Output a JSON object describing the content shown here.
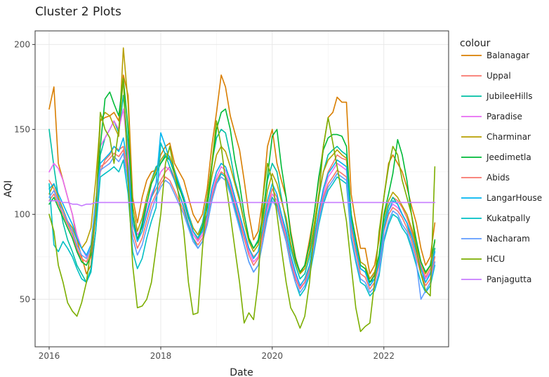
{
  "chart_data": {
    "type": "line",
    "title": "Cluster 2 Plots",
    "xlabel": "Date",
    "ylabel": "AQI",
    "xlim": [
      "2015-10-01",
      "2023-03-01"
    ],
    "ylim": [
      22,
      208
    ],
    "x_ticks": [
      {
        "value": "2016-01-01",
        "label": "2016"
      },
      {
        "value": "2018-01-01",
        "label": "2018"
      },
      {
        "value": "2020-01-01",
        "label": "2020"
      },
      {
        "value": "2022-01-01",
        "label": "2022"
      }
    ],
    "y_ticks": [
      50,
      100,
      150,
      200
    ],
    "grid": true,
    "legend": {
      "title": "colour",
      "position": "right"
    },
    "x": [
      "2016-01",
      "2016-02",
      "2016-03",
      "2016-04",
      "2016-05",
      "2016-06",
      "2016-07",
      "2016-08",
      "2016-09",
      "2016-10",
      "2016-11",
      "2016-12",
      "2017-01",
      "2017-02",
      "2017-03",
      "2017-04",
      "2017-05",
      "2017-06",
      "2017-07",
      "2017-08",
      "2017-09",
      "2017-10",
      "2017-11",
      "2017-12",
      "2018-01",
      "2018-02",
      "2018-03",
      "2018-04",
      "2018-05",
      "2018-06",
      "2018-07",
      "2018-08",
      "2018-09",
      "2018-10",
      "2018-11",
      "2018-12",
      "2019-01",
      "2019-02",
      "2019-03",
      "2019-04",
      "2019-05",
      "2019-06",
      "2019-07",
      "2019-08",
      "2019-09",
      "2019-10",
      "2019-11",
      "2019-12",
      "2020-01",
      "2020-02",
      "2020-03",
      "2020-04",
      "2020-05",
      "2020-06",
      "2020-07",
      "2020-08",
      "2020-09",
      "2020-10",
      "2020-11",
      "2020-12",
      "2021-01",
      "2021-02",
      "2021-03",
      "2021-04",
      "2021-05",
      "2021-06",
      "2021-07",
      "2021-08",
      "2021-09",
      "2021-10",
      "2021-11",
      "2021-12",
      "2022-01",
      "2022-02",
      "2022-03",
      "2022-04",
      "2022-05",
      "2022-06",
      "2022-07",
      "2022-08",
      "2022-09",
      "2022-10",
      "2022-11",
      "2022-12"
    ],
    "series": [
      {
        "name": "Balanagar",
        "color": "#D97E00",
        "values": [
          162,
          175,
          130,
          120,
          110,
          100,
          85,
          75,
          65,
          70,
          100,
          155,
          157,
          158,
          160,
          155,
          182,
          170,
          110,
          95,
          110,
          120,
          125,
          126,
          135,
          140,
          142,
          130,
          125,
          120,
          110,
          100,
          95,
          100,
          115,
          140,
          160,
          182,
          175,
          158,
          148,
          138,
          120,
          100,
          85,
          90,
          110,
          140,
          150,
          130,
          120,
          110,
          90,
          75,
          65,
          70,
          85,
          100,
          120,
          140,
          157,
          160,
          169,
          166,
          166,
          112,
          95,
          80,
          80,
          65,
          70,
          85,
          110,
          130,
          135,
          130,
          125,
          116,
          105,
          95,
          80,
          70,
          75,
          95
        ]
      },
      {
        "name": "Uppal",
        "color": "#F8766D",
        "values": [
          120,
          115,
          108,
          102,
          95,
          90,
          80,
          72,
          70,
          75,
          100,
          125,
          132,
          135,
          140,
          138,
          140,
          125,
          95,
          85,
          90,
          100,
          110,
          115,
          120,
          125,
          128,
          122,
          115,
          110,
          100,
          90,
          85,
          90,
          100,
          115,
          125,
          130,
          128,
          120,
          110,
          100,
          90,
          80,
          75,
          78,
          90,
          105,
          115,
          110,
          100,
          90,
          75,
          65,
          58,
          62,
          70,
          85,
          100,
          115,
          125,
          130,
          135,
          133,
          132,
          100,
          85,
          70,
          68,
          60,
          65,
          75,
          95,
          105,
          110,
          108,
          104,
          98,
          90,
          80,
          70,
          63,
          68,
          80
        ]
      },
      {
        "name": "JubileeHills",
        "color": "#00BFA4",
        "values": [
          150,
          128,
          110,
          95,
          85,
          78,
          70,
          65,
          60,
          68,
          90,
          135,
          145,
          150,
          155,
          148,
          170,
          140,
          100,
          85,
          95,
          110,
          120,
          128,
          130,
          135,
          132,
          125,
          118,
          110,
          100,
          92,
          88,
          95,
          110,
          130,
          145,
          150,
          148,
          135,
          120,
          110,
          95,
          85,
          80,
          85,
          100,
          120,
          130,
          125,
          110,
          95,
          80,
          70,
          62,
          65,
          75,
          90,
          110,
          125,
          135,
          138,
          140,
          137,
          135,
          95,
          80,
          68,
          66,
          60,
          62,
          72,
          95,
          105,
          110,
          106,
          100,
          95,
          85,
          75,
          65,
          60,
          65,
          80
        ]
      },
      {
        "name": "Paradise",
        "color": "#E76BF3",
        "values": [
          125,
          130,
          127,
          120,
          110,
          100,
          88,
          80,
          75,
          80,
          105,
          140,
          145,
          150,
          155,
          150,
          162,
          135,
          98,
          88,
          92,
          102,
          112,
          118,
          125,
          128,
          126,
          120,
          112,
          105,
          95,
          88,
          84,
          88,
          98,
          112,
          122,
          128,
          126,
          118,
          108,
          98,
          88,
          78,
          72,
          75,
          88,
          103,
          112,
          108,
          98,
          88,
          74,
          64,
          57,
          60,
          68,
          82,
          98,
          112,
          122,
          126,
          130,
          128,
          126,
          96,
          82,
          68,
          66,
          58,
          62,
          72,
          92,
          102,
          106,
          104,
          100,
          95,
          88,
          78,
          68,
          62,
          66,
          78
        ]
      },
      {
        "name": "Charminar",
        "color": "#B79F00",
        "values": [
          112,
          118,
          110,
          103,
          96,
          92,
          85,
          80,
          84,
          92,
          120,
          155,
          160,
          158,
          152,
          146,
          198,
          165,
          105,
          90,
          98,
          110,
          120,
          126,
          132,
          136,
          134,
          126,
          118,
          110,
          100,
          92,
          88,
          93,
          105,
          122,
          135,
          140,
          137,
          128,
          118,
          108,
          95,
          84,
          78,
          82,
          96,
          114,
          124,
          118,
          108,
          98,
          83,
          72,
          65,
          68,
          78,
          94,
          112,
          125,
          132,
          135,
          138,
          135,
          133,
          100,
          86,
          72,
          70,
          62,
          66,
          76,
          98,
          108,
          113,
          110,
          105,
          100,
          92,
          82,
          72,
          65,
          70,
          84
        ]
      },
      {
        "name": "Jeedimetla",
        "color": "#00BA38",
        "values": [
          106,
          110,
          104,
          98,
          92,
          86,
          78,
          72,
          70,
          76,
          102,
          140,
          168,
          172,
          165,
          158,
          180,
          150,
          100,
          85,
          93,
          106,
          118,
          124,
          130,
          134,
          132,
          124,
          116,
          108,
          98,
          90,
          86,
          92,
          104,
          128,
          150,
          160,
          162,
          150,
          132,
          118,
          100,
          86,
          80,
          84,
          100,
          122,
          146,
          150,
          128,
          110,
          88,
          74,
          66,
          70,
          82,
          100,
          122,
          138,
          145,
          147,
          147,
          146,
          140,
          100,
          84,
          70,
          68,
          60,
          64,
          76,
          100,
          112,
          124,
          144,
          135,
          120,
          100,
          85,
          72,
          66,
          70,
          85
        ]
      },
      {
        "name": "Abids",
        "color": "#F8766D",
        "values": [
          108,
          112,
          106,
          100,
          94,
          88,
          80,
          74,
          72,
          78,
          104,
          128,
          130,
          133,
          136,
          134,
          138,
          120,
          90,
          80,
          86,
          96,
          106,
          112,
          118,
          122,
          120,
          114,
          108,
          102,
          94,
          86,
          82,
          86,
          96,
          110,
          120,
          125,
          123,
          116,
          106,
          96,
          86,
          76,
          70,
          74,
          88,
          100,
          110,
          106,
          96,
          86,
          72,
          62,
          56,
          60,
          68,
          82,
          98,
          110,
          118,
          122,
          126,
          124,
          122,
          92,
          78,
          65,
          63,
          56,
          60,
          70,
          90,
          100,
          104,
          102,
          98,
          92,
          85,
          75,
          65,
          58,
          62,
          75
        ]
      },
      {
        "name": "LangarHouse",
        "color": "#00B4F0",
        "values": [
          115,
          118,
          112,
          106,
          100,
          94,
          86,
          80,
          76,
          82,
          108,
          130,
          133,
          136,
          140,
          137,
          145,
          128,
          95,
          84,
          90,
          100,
          110,
          118,
          148,
          140,
          132,
          126,
          118,
          110,
          100,
          90,
          86,
          90,
          100,
          115,
          125,
          130,
          128,
          120,
          110,
          100,
          90,
          80,
          74,
          78,
          92,
          108,
          118,
          112,
          100,
          90,
          76,
          66,
          58,
          62,
          70,
          86,
          102,
          115,
          124,
          128,
          132,
          130,
          128,
          96,
          82,
          68,
          66,
          58,
          62,
          72,
          92,
          102,
          108,
          106,
          100,
          95,
          88,
          78,
          68,
          60,
          65,
          78
        ]
      },
      {
        "name": "Kukatpally",
        "color": "#00BFC4",
        "values": [
          118,
          82,
          78,
          84,
          80,
          75,
          68,
          62,
          60,
          66,
          90,
          122,
          124,
          126,
          128,
          125,
          132,
          112,
          78,
          68,
          74,
          86,
          96,
          104,
          142,
          135,
          128,
          120,
          112,
          104,
          94,
          86,
          80,
          84,
          94,
          108,
          118,
          124,
          122,
          114,
          104,
          94,
          82,
          72,
          66,
          70,
          84,
          100,
          110,
          105,
          94,
          84,
          70,
          60,
          52,
          56,
          64,
          78,
          94,
          106,
          114,
          118,
          122,
          120,
          118,
          86,
          72,
          60,
          58,
          52,
          55,
          64,
          84,
          94,
          100,
          98,
          92,
          88,
          80,
          70,
          60,
          54,
          58,
          70
        ]
      },
      {
        "name": "Nacharam",
        "color": "#619CFF",
        "values": [
          110,
          114,
          108,
          102,
          96,
          90,
          82,
          76,
          74,
          80,
          106,
          126,
          128,
          130,
          134,
          131,
          136,
          118,
          86,
          76,
          82,
          92,
          102,
          110,
          116,
          120,
          118,
          112,
          106,
          100,
          92,
          84,
          80,
          84,
          94,
          108,
          118,
          122,
          120,
          112,
          102,
          92,
          82,
          72,
          66,
          70,
          84,
          98,
          108,
          104,
          94,
          84,
          70,
          60,
          54,
          58,
          66,
          80,
          96,
          108,
          116,
          120,
          124,
          122,
          120,
          88,
          74,
          62,
          60,
          54,
          57,
          66,
          86,
          96,
          102,
          100,
          94,
          90,
          82,
          72,
          50,
          55,
          60,
          72
        ]
      },
      {
        "name": "HCU",
        "color": "#7CAE00",
        "values": [
          100,
          90,
          70,
          60,
          48,
          43,
          40,
          48,
          60,
          80,
          100,
          160,
          150,
          145,
          130,
          150,
          180,
          120,
          70,
          45,
          46,
          50,
          60,
          80,
          100,
          130,
          140,
          125,
          110,
          90,
          60,
          41,
          42,
          80,
          110,
          130,
          155,
          140,
          120,
          100,
          80,
          60,
          36,
          42,
          38,
          60,
          110,
          130,
          120,
          100,
          80,
          60,
          45,
          40,
          33,
          40,
          60,
          90,
          110,
          140,
          157,
          142,
          128,
          112,
          96,
          70,
          45,
          31,
          34,
          36,
          60,
          90,
          110,
          128,
          140,
          135,
          120,
          110,
          100,
          80,
          65,
          55,
          52,
          128
        ]
      },
      {
        "name": "Panjagutta",
        "color": "#C77CFF",
        "values": [
          108,
          108,
          108,
          107,
          107,
          106,
          106,
          105,
          106,
          106,
          107,
          107,
          107,
          107,
          107,
          107,
          107,
          107,
          107,
          107,
          107,
          107,
          107,
          107,
          107,
          107,
          107,
          107,
          107,
          107,
          107,
          107,
          107,
          107,
          107,
          107,
          107,
          107,
          107,
          107,
          107,
          107,
          107,
          107,
          107,
          107,
          107,
          107,
          107,
          107,
          107,
          107,
          107,
          107,
          107,
          107,
          107,
          107,
          107,
          107,
          107,
          107,
          107,
          107,
          107,
          107,
          107,
          107,
          107,
          107,
          107,
          107,
          107,
          107,
          107,
          107,
          107,
          107,
          107,
          107,
          107,
          107,
          107,
          107
        ]
      }
    ]
  }
}
